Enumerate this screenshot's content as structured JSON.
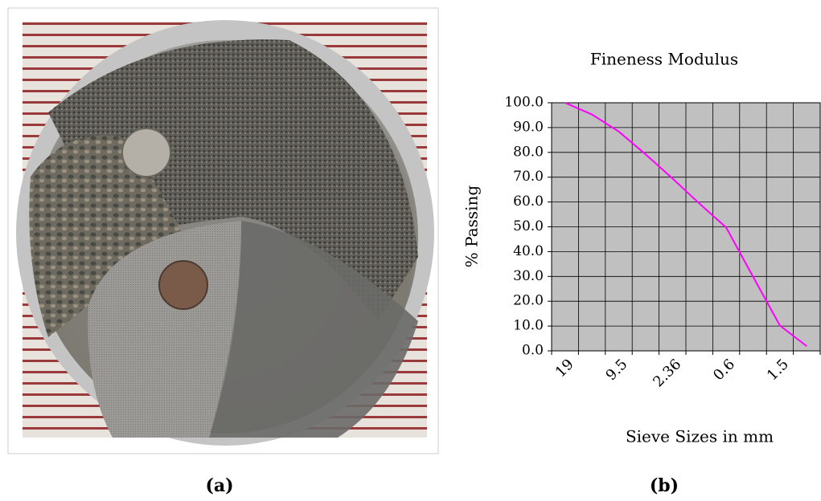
{
  "chart_data": {
    "type": "line",
    "title": "Fineness Modulus",
    "x_label": "Sieve Sizes in mm",
    "y_label": "% Passing",
    "categories": [
      "19",
      null,
      "9.5",
      null,
      "2.36",
      null,
      "0.6",
      null,
      "1.5",
      null
    ],
    "series": [
      {
        "name": "% Passing",
        "color": "#ff00ff",
        "values": [
          100,
          95.3,
          88.4,
          79.2,
          69.5,
          59.4,
          49.7,
          29.9,
          10.2,
          1.9
        ]
      }
    ],
    "ylim": [
      0,
      100
    ],
    "yticks": [
      {
        "value": 0,
        "label": "0.0"
      },
      {
        "value": 10,
        "label": "10.0"
      },
      {
        "value": 20,
        "label": "20.0"
      },
      {
        "value": 30,
        "label": "30.0"
      },
      {
        "value": 40,
        "label": "40.0"
      },
      {
        "value": 50,
        "label": "50.0"
      },
      {
        "value": 60,
        "label": "60.0"
      },
      {
        "value": 70,
        "label": "70.0"
      },
      {
        "value": 80,
        "label": "80.0"
      },
      {
        "value": 90,
        "label": "90.0"
      },
      {
        "value": 100,
        "label": "100.0"
      }
    ],
    "grid": true,
    "background": "#c0c0c0"
  },
  "captions": [
    "(a)",
    "(b)"
  ]
}
